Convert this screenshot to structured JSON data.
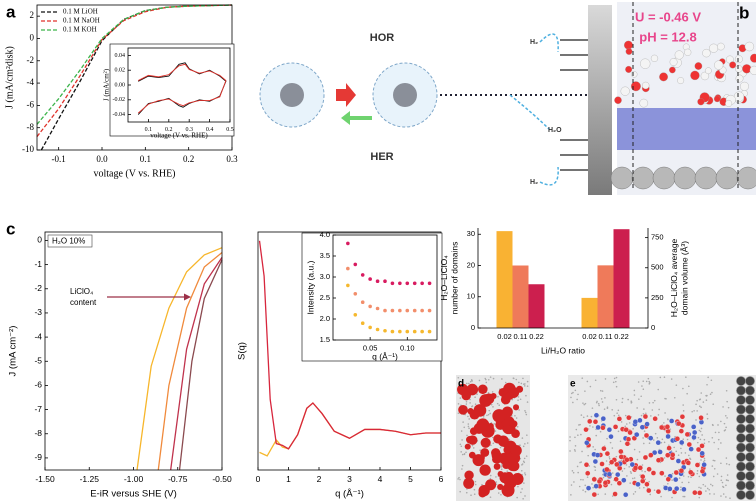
{
  "panel_labels": [
    "a",
    "b",
    "c",
    "d",
    "e"
  ],
  "diagram": {
    "labels": [
      "HOR",
      "HER",
      "H₂",
      "H₂",
      "H₂O"
    ]
  },
  "panel_b": {
    "potential": "U = -0.46 V",
    "ph": "pH = 12.8"
  },
  "chart_data": [
    {
      "type": "line",
      "xlabel": "voltage (V vs. RHE)",
      "ylabel": "J (mA/cm²disk)",
      "xlim": [
        -0.15,
        0.3
      ],
      "ylim": [
        -10,
        3
      ],
      "xticks": [
        -0.1,
        {
          "value": 0,
          "label": "0.0"
        },
        0.1,
        0.2,
        0.3
      ],
      "yticks": [
        -10,
        -8,
        -6,
        -4,
        -2,
        0,
        2
      ],
      "dashed": true,
      "legend": "upper left",
      "series": [
        {
          "name": "0.1 M LiOH",
          "color": "#111111",
          "x": [
            -0.14,
            -0.1,
            -0.05,
            0,
            0.05,
            0.1,
            0.15,
            0.2,
            0.3
          ],
          "values": [
            -10,
            -7.2,
            -3.8,
            -0.2,
            1.7,
            2.5,
            2.8,
            2.9,
            3
          ]
        },
        {
          "name": "0.1 M NaOH",
          "color": "#e0322b",
          "x": [
            -0.15,
            -0.1,
            -0.05,
            0,
            0.05,
            0.1,
            0.15,
            0.2,
            0.3
          ],
          "values": [
            -8.8,
            -6.3,
            -3.3,
            -0.1,
            1.6,
            2.4,
            2.8,
            2.9,
            3
          ]
        },
        {
          "name": "0.1 M KOH",
          "color": "#3cb44b",
          "x": [
            -0.15,
            -0.1,
            -0.05,
            0,
            0.05,
            0.1,
            0.15,
            0.2,
            0.3
          ],
          "values": [
            -7.7,
            -5.4,
            -2.8,
            0,
            1.7,
            2.5,
            2.8,
            2.9,
            3
          ]
        }
      ]
    },
    {
      "type": "line",
      "xlabel": "voltage (V vs. RHE)",
      "ylabel": "J (mA/cm²)",
      "xlim": [
        0,
        0.5
      ],
      "ylim": [
        -0.05,
        0.05
      ],
      "xticks": [
        0.1,
        0.2,
        0.3,
        0.4,
        0.5
      ],
      "yticks": [
        -0.04,
        -0.02,
        {
          "value": 0,
          "label": "0.00"
        },
        0.02,
        0.04
      ],
      "series": [
        {
          "color": "#111111",
          "x": [
            0.05,
            0.1,
            0.15,
            0.2,
            0.25,
            0.28,
            0.3,
            0.35,
            0.4,
            0.45,
            0.48,
            0.45,
            0.4,
            0.35,
            0.3,
            0.27,
            0.25,
            0.2,
            0.15,
            0.1,
            0.05
          ],
          "values": [
            0.005,
            0.012,
            0.01,
            0.012,
            0.028,
            0.03,
            0.022,
            0.015,
            0.02,
            0.012,
            0.005,
            -0.015,
            -0.022,
            -0.02,
            -0.025,
            -0.03,
            -0.028,
            -0.018,
            -0.022,
            -0.025,
            -0.04
          ]
        },
        {
          "color": "#e0322b",
          "x": [
            0.05,
            0.1,
            0.15,
            0.2,
            0.25,
            0.28,
            0.3,
            0.35,
            0.4,
            0.45,
            0.48,
            0.45,
            0.4,
            0.35,
            0.3,
            0.27,
            0.25,
            0.2,
            0.15,
            0.1,
            0.05
          ],
          "values": [
            0.006,
            0.013,
            0.011,
            0.014,
            0.026,
            0.028,
            0.021,
            0.016,
            0.019,
            0.013,
            0.006,
            -0.016,
            -0.021,
            -0.021,
            -0.024,
            -0.028,
            -0.026,
            -0.019,
            -0.021,
            -0.026,
            -0.038
          ]
        }
      ]
    },
    {
      "type": "line",
      "xlabel": "E-iR versus SHE (V)",
      "ylabel": "J (mA cm⁻²)",
      "xlim": [
        -1.5,
        -0.5
      ],
      "ylim": [
        -9.5,
        0.35
      ],
      "xticks": [
        {
          "value": -1.5,
          "label": "-1.50"
        },
        -1.25,
        {
          "value": -1,
          "label": "-1.00"
        },
        -0.75,
        {
          "value": -0.5,
          "label": "-0.50"
        }
      ],
      "yticks": [
        -9,
        -8,
        -7,
        -6,
        -5,
        -4,
        -3,
        -2,
        -1,
        0
      ],
      "annotations": [
        "H₂O 10%",
        "LiClO₄",
        "content"
      ],
      "series": [
        {
          "color": "#f7b62b",
          "x": [
            -0.5,
            -0.6,
            -0.7,
            -0.8,
            -0.9,
            -0.98
          ],
          "values": [
            -0.3,
            -0.6,
            -1.3,
            -2.8,
            -5.2,
            -9.5
          ]
        },
        {
          "color": "#f08a3c",
          "x": [
            -0.5,
            -0.6,
            -0.7,
            -0.8,
            -0.86
          ],
          "values": [
            -0.5,
            -1.1,
            -2.8,
            -6,
            -9.5
          ]
        },
        {
          "color": "#c0334d",
          "x": [
            -0.5,
            -0.6,
            -0.7,
            -0.79
          ],
          "values": [
            -0.7,
            -1.8,
            -4.5,
            -9.5
          ]
        },
        {
          "color": "#8b4a4f",
          "x": [
            -0.5,
            -0.6,
            -0.67,
            -0.74
          ],
          "values": [
            -0.8,
            -2.4,
            -5,
            -9.5
          ]
        }
      ]
    },
    {
      "type": "line",
      "xlabel": "q (Å⁻¹)",
      "ylabel": "S(q)",
      "xlim": [
        0,
        6
      ],
      "ylim": [
        -2,
        11.5
      ],
      "xticks": [
        0,
        1,
        2,
        3,
        4,
        5,
        6
      ],
      "series": [
        {
          "color": "#f5b82e",
          "x": [
            0.05,
            0.3,
            0.6,
            0.8,
            1.0,
            1.3,
            1.6,
            1.8,
            2.1,
            2.5,
            3,
            3.5,
            4,
            4.5,
            5,
            5.5,
            6
          ],
          "values": [
            -1,
            -1.2,
            -0.3,
            -0.7,
            -0.8,
            0,
            1.5,
            1.8,
            1.2,
            0.2,
            -0.2,
            0.3,
            0.3,
            0.2,
            0,
            0.1,
            0.1
          ]
        },
        {
          "color": "#d7263d",
          "x": [
            0.05,
            0.2,
            0.4,
            0.6,
            0.8,
            1.0,
            1.3,
            1.6,
            1.8,
            2.1,
            2.5,
            3,
            3.5,
            4,
            4.5,
            5,
            5.5,
            6
          ],
          "values": [
            11,
            9,
            2,
            -0.5,
            -0.6,
            -0.8,
            0,
            1.5,
            1.8,
            1.2,
            0.2,
            -0.2,
            0.3,
            0.3,
            0.2,
            0,
            0.1,
            0.1
          ]
        }
      ]
    },
    {
      "type": "scatter",
      "xlabel": "q (Å⁻¹)",
      "ylabel": "Intensity (a.u.)",
      "xlim": [
        0,
        0.14
      ],
      "ylim": [
        1.5,
        4
      ],
      "xticks": [
        0.05,
        {
          "value": 0.1,
          "label": "0.10"
        }
      ],
      "yticks": [
        1.5,
        {
          "value": 2,
          "label": "2.0"
        },
        2.5,
        {
          "value": 3,
          "label": "3.0"
        },
        3.5,
        {
          "value": 4,
          "label": "4.0"
        }
      ],
      "x": [
        0.02,
        0.03,
        0.04,
        0.05,
        0.06,
        0.07,
        0.08,
        0.09,
        0.1,
        0.11,
        0.12,
        0.13
      ],
      "series": [
        {
          "color": "#d81b60",
          "values": [
            3.8,
            3.3,
            3.05,
            2.95,
            2.9,
            2.9,
            2.85,
            2.85,
            2.85,
            2.85,
            2.85,
            2.85
          ]
        },
        {
          "color": "#f28e6b",
          "values": [
            3.2,
            2.6,
            2.4,
            2.3,
            2.25,
            2.2,
            2.2,
            2.2,
            2.2,
            2.2,
            2.2,
            2.2
          ]
        },
        {
          "color": "#f5b82e",
          "values": [
            2.8,
            2.1,
            1.9,
            1.8,
            1.75,
            1.72,
            1.7,
            1.7,
            1.7,
            1.7,
            1.7,
            1.7
          ]
        }
      ]
    },
    {
      "type": "bar",
      "xlabel": "Li/H₂O ratio",
      "ylabel": [
        "H₂O–LiClO₄",
        "number of domains"
      ],
      "y2label": [
        "H₂O–LiClO₄ average",
        "domain volume (Å³)"
      ],
      "categories": [
        "0.02",
        "0.11",
        "0.22"
      ],
      "colors": [
        "#f9b233",
        "#ef7a5a",
        "#cc1f4e"
      ],
      "ylim": [
        0,
        32
      ],
      "yticks": [
        0,
        10,
        20,
        30
      ],
      "y2lim": [
        0,
        830
      ],
      "y2ticks": [
        0,
        250,
        500,
        750
      ],
      "series": [
        {
          "values": [
            31,
            20,
            14
          ]
        },
        {
          "axis": "y2",
          "values": [
            250,
            520,
            820
          ]
        }
      ]
    }
  ]
}
